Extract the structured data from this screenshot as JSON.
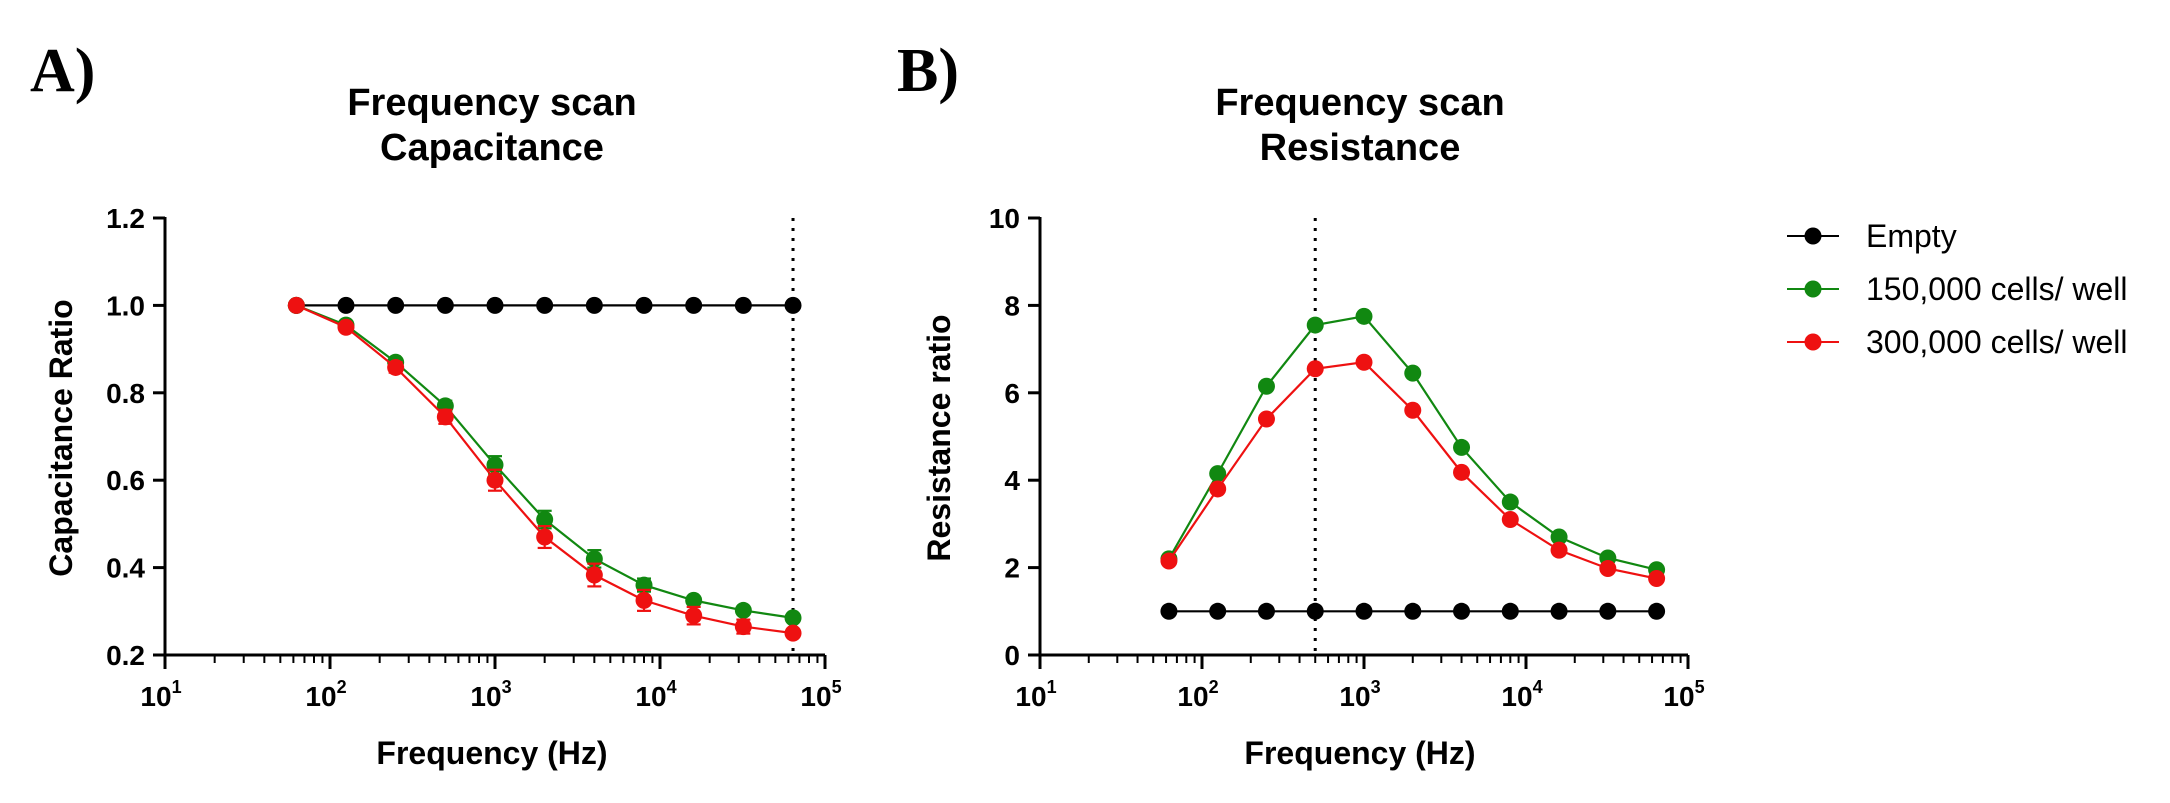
{
  "panels": [
    {
      "letter": "A)"
    },
    {
      "letter": "B)"
    }
  ],
  "legend": [
    {
      "name": "Empty",
      "color": "#000000"
    },
    {
      "name": "150,000 cells/ well",
      "color": "#118811"
    },
    {
      "name": "300,000 cells/ well",
      "color": "#ee1111"
    }
  ],
  "chart_data": [
    {
      "type": "line",
      "title": [
        "Frequency scan",
        "Capacitance"
      ],
      "xlabel": "Frequency (Hz)",
      "ylabel": "Capacitance Ratio",
      "xscale": "log",
      "xlim": [
        10,
        100000
      ],
      "ylim": [
        0.2,
        1.2
      ],
      "yticks": [
        "0.2",
        "0.4",
        "0.6",
        "0.8",
        "1.0",
        "1.2"
      ],
      "xticks": [
        {
          "base": "10",
          "exp": "1"
        },
        {
          "base": "10",
          "exp": "2"
        },
        {
          "base": "10",
          "exp": "3"
        },
        {
          "base": "10",
          "exp": "4"
        },
        {
          "base": "10",
          "exp": "5"
        }
      ],
      "reference_line_x": 64000,
      "x": [
        62.5,
        125,
        250,
        500,
        1000,
        2000,
        4000,
        8000,
        16000,
        32000,
        64000
      ],
      "series": [
        {
          "name": "Empty",
          "color": "#000000",
          "values": [
            1.0,
            1.0,
            1.0,
            1.0,
            1.0,
            1.0,
            1.0,
            1.0,
            1.0,
            1.0,
            1.0
          ],
          "errors": [
            0,
            0,
            0,
            0,
            0,
            0,
            0,
            0,
            0,
            0,
            0
          ]
        },
        {
          "name": "150,000 cells/ well",
          "color": "#118811",
          "values": [
            1.0,
            0.955,
            0.87,
            0.77,
            0.635,
            0.51,
            0.42,
            0.36,
            0.325,
            0.302,
            0.285
          ],
          "errors": [
            0,
            0.006,
            0.008,
            0.012,
            0.02,
            0.02,
            0.02,
            0.015,
            0.008,
            0.006,
            0.005
          ]
        },
        {
          "name": "300,000 cells/ well",
          "color": "#ee1111",
          "values": [
            1.0,
            0.95,
            0.858,
            0.745,
            0.6,
            0.47,
            0.383,
            0.325,
            0.29,
            0.265,
            0.25
          ],
          "errors": [
            0,
            0.008,
            0.012,
            0.016,
            0.024,
            0.025,
            0.026,
            0.024,
            0.02,
            0.016,
            0.006
          ]
        }
      ]
    },
    {
      "type": "line",
      "title": [
        "Frequency scan",
        "Resistance"
      ],
      "xlabel": "Frequency (Hz)",
      "ylabel": "Resistance ratio",
      "xscale": "log",
      "xlim": [
        10,
        100000
      ],
      "ylim": [
        0,
        10
      ],
      "yticks": [
        "0",
        "2",
        "4",
        "6",
        "8",
        "10"
      ],
      "xticks": [
        {
          "base": "10",
          "exp": "1"
        },
        {
          "base": "10",
          "exp": "2"
        },
        {
          "base": "10",
          "exp": "3"
        },
        {
          "base": "10",
          "exp": "4"
        },
        {
          "base": "10",
          "exp": "5"
        }
      ],
      "reference_line_x": 500,
      "x": [
        62.5,
        125,
        250,
        500,
        1000,
        2000,
        4000,
        8000,
        16000,
        32000,
        64000
      ],
      "series": [
        {
          "name": "Empty",
          "color": "#000000",
          "values": [
            1.0,
            1.0,
            1.0,
            1.0,
            1.0,
            1.0,
            1.0,
            1.0,
            1.0,
            1.0,
            1.0
          ],
          "errors": [
            0,
            0,
            0,
            0,
            0,
            0,
            0,
            0,
            0,
            0,
            0
          ]
        },
        {
          "name": "150,000 cells/ well",
          "color": "#118811",
          "values": [
            2.2,
            4.15,
            6.15,
            7.55,
            7.75,
            6.45,
            4.75,
            3.5,
            2.7,
            2.22,
            1.95
          ],
          "errors": [
            0,
            0,
            0,
            0,
            0,
            0,
            0,
            0,
            0,
            0,
            0
          ]
        },
        {
          "name": "300,000 cells/ well",
          "color": "#ee1111",
          "values": [
            2.15,
            3.8,
            5.4,
            6.55,
            6.7,
            5.6,
            4.18,
            3.1,
            2.4,
            1.98,
            1.75
          ],
          "errors": [
            0,
            0,
            0,
            0,
            0,
            0,
            0,
            0,
            0,
            0,
            0
          ]
        }
      ]
    }
  ]
}
